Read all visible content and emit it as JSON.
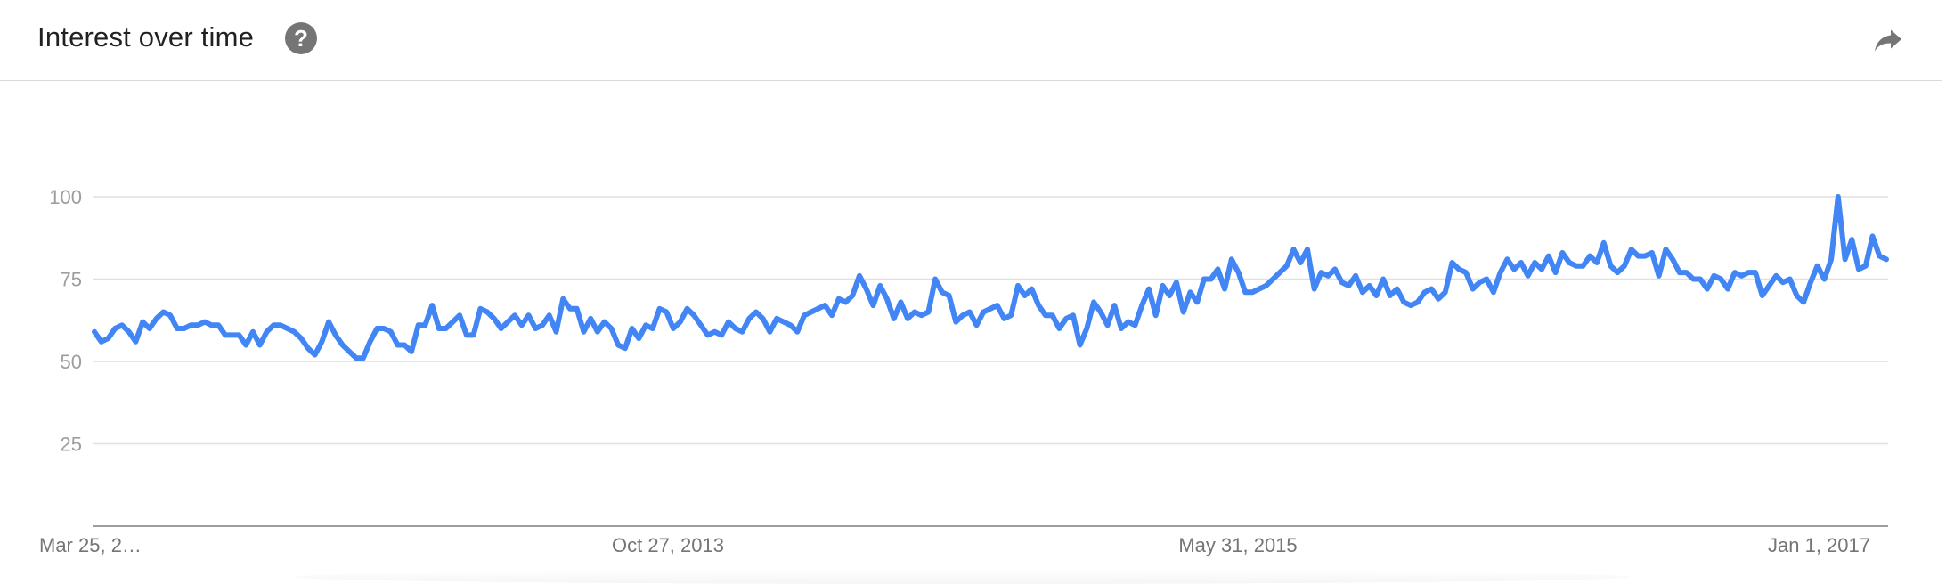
{
  "header": {
    "title": "Interest over time",
    "help_glyph": "?",
    "help_icon": "help-circle-icon",
    "share_icon": "share-arrow-icon"
  },
  "colors": {
    "line": "#4285f4",
    "grid": "#e0e0e0",
    "axis": "#9e9e9e",
    "tick_text": "#9e9e9e",
    "date_text": "#757575"
  },
  "chart_data": {
    "type": "line",
    "title": "Interest over time",
    "xlabel": "",
    "ylabel": "",
    "ylim": [
      0,
      100
    ],
    "y_ticks": [
      25,
      50,
      75,
      100
    ],
    "grid": true,
    "x_start": "Mar 25, 2012",
    "x_interval": "weekly",
    "x_tick_labels": [
      "Mar 25, 2…",
      "Oct 27, 2013",
      "May 31, 2015",
      "Jan 1, 2017"
    ],
    "series": [
      {
        "values": [
          59,
          56,
          57,
          60,
          61,
          59,
          56,
          62,
          60,
          63,
          65,
          64,
          60,
          60,
          61,
          61,
          62,
          61,
          61,
          58,
          58,
          58,
          55,
          59,
          55,
          59,
          61,
          61,
          60,
          59,
          57,
          54,
          52,
          56,
          62,
          58,
          55,
          53,
          51,
          51,
          56,
          60,
          60,
          59,
          55,
          55,
          53,
          61,
          61,
          67,
          60,
          60,
          62,
          64,
          58,
          58,
          66,
          65,
          63,
          60,
          62,
          64,
          61,
          64,
          60,
          61,
          64,
          59,
          69,
          66,
          66,
          59,
          63,
          59,
          62,
          60,
          55,
          54,
          60,
          57,
          61,
          60,
          66,
          65,
          60,
          62,
          66,
          64,
          61,
          58,
          59,
          58,
          62,
          60,
          59,
          63,
          65,
          63,
          59,
          63,
          62,
          61,
          59,
          64,
          65,
          66,
          67,
          64,
          69,
          68,
          70,
          76,
          72,
          67,
          73,
          69,
          63,
          68,
          63,
          65,
          64,
          65,
          75,
          71,
          70,
          62,
          64,
          65,
          61,
          65,
          66,
          67,
          63,
          64,
          73,
          70,
          72,
          67,
          64,
          64,
          60,
          63,
          64,
          55,
          60,
          68,
          65,
          61,
          67,
          60,
          62,
          61,
          67,
          72,
          64,
          73,
          70,
          74,
          65,
          71,
          68,
          75,
          75,
          78,
          72,
          81,
          77,
          71,
          71,
          72,
          73,
          75,
          77,
          79,
          84,
          80,
          84,
          72,
          77,
          76,
          78,
          74,
          73,
          76,
          71,
          73,
          70,
          75,
          70,
          72,
          68,
          67,
          68,
          71,
          72,
          69,
          71,
          80,
          78,
          77,
          72,
          74,
          75,
          71,
          77,
          81,
          78,
          80,
          76,
          80,
          78,
          82,
          77,
          83,
          80,
          79,
          79,
          82,
          80,
          86,
          79,
          77,
          79,
          84,
          82,
          82,
          83,
          76,
          84,
          81,
          77,
          77,
          75,
          75,
          72,
          76,
          75,
          72,
          77,
          76,
          77,
          77,
          70,
          73,
          76,
          74,
          75,
          70,
          68,
          74,
          79,
          75,
          81,
          100,
          81,
          87,
          78,
          79,
          88,
          82,
          81
        ]
      }
    ]
  }
}
